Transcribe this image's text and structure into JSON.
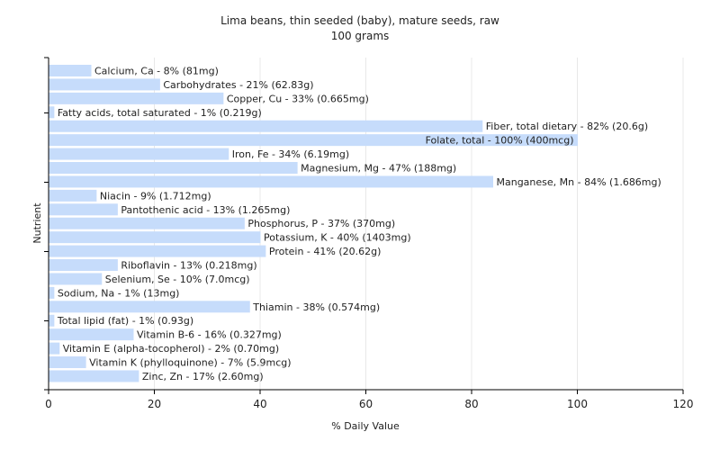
{
  "chart_data": {
    "type": "bar",
    "orientation": "horizontal",
    "title": "Lima beans, thin seeded (baby), mature seeds, raw",
    "subtitle": "100 grams",
    "xlabel": "% Daily Value",
    "ylabel": "Nutrient",
    "xlim": [
      0,
      120
    ],
    "xticks": [
      0,
      20,
      40,
      60,
      80,
      100,
      120
    ],
    "grid": true,
    "bar_color": "#c6dcfb",
    "categories": [
      "Calcium, Ca",
      "Carbohydrates",
      "Copper, Cu",
      "Fatty acids, total saturated",
      "Fiber, total dietary",
      "Folate, total",
      "Iron, Fe",
      "Magnesium, Mg",
      "Manganese, Mn",
      "Niacin",
      "Pantothenic acid",
      "Phosphorus, P",
      "Potassium, K",
      "Protein",
      "Riboflavin",
      "Selenium, Se",
      "Sodium, Na",
      "Thiamin",
      "Total lipid (fat)",
      "Vitamin B-6",
      "Vitamin E (alpha-tocopherol)",
      "Vitamin K (phylloquinone)",
      "Zinc, Zn"
    ],
    "values": [
      8,
      21,
      33,
      1,
      82,
      100,
      34,
      47,
      84,
      9,
      13,
      37,
      40,
      41,
      13,
      10,
      1,
      38,
      1,
      16,
      2,
      7,
      17
    ],
    "labels": [
      "Calcium, Ca - 8% (81mg)",
      "Carbohydrates - 21% (62.83g)",
      "Copper, Cu - 33% (0.665mg)",
      "Fatty acids, total saturated - 1% (0.219g)",
      "Fiber, total dietary - 82% (20.6g)",
      "Folate, total - 100% (400mcg)",
      "Iron, Fe - 34% (6.19mg)",
      "Magnesium, Mg - 47% (188mg)",
      "Manganese, Mn - 84% (1.686mg)",
      "Niacin - 9% (1.712mg)",
      "Pantothenic acid - 13% (1.265mg)",
      "Phosphorus, P - 37% (370mg)",
      "Potassium, K - 40% (1403mg)",
      "Protein - 41% (20.62g)",
      "Riboflavin - 13% (0.218mg)",
      "Selenium, Se - 10% (7.0mcg)",
      "Sodium, Na - 1% (13mg)",
      "Thiamin - 38% (0.574mg)",
      "Total lipid (fat) - 1% (0.93g)",
      "Vitamin B-6 - 16% (0.327mg)",
      "Vitamin E (alpha-tocopherol) - 2% (0.70mg)",
      "Vitamin K (phylloquinone) - 7% (5.9mcg)",
      "Zinc, Zn - 17% (2.60mg)"
    ]
  }
}
